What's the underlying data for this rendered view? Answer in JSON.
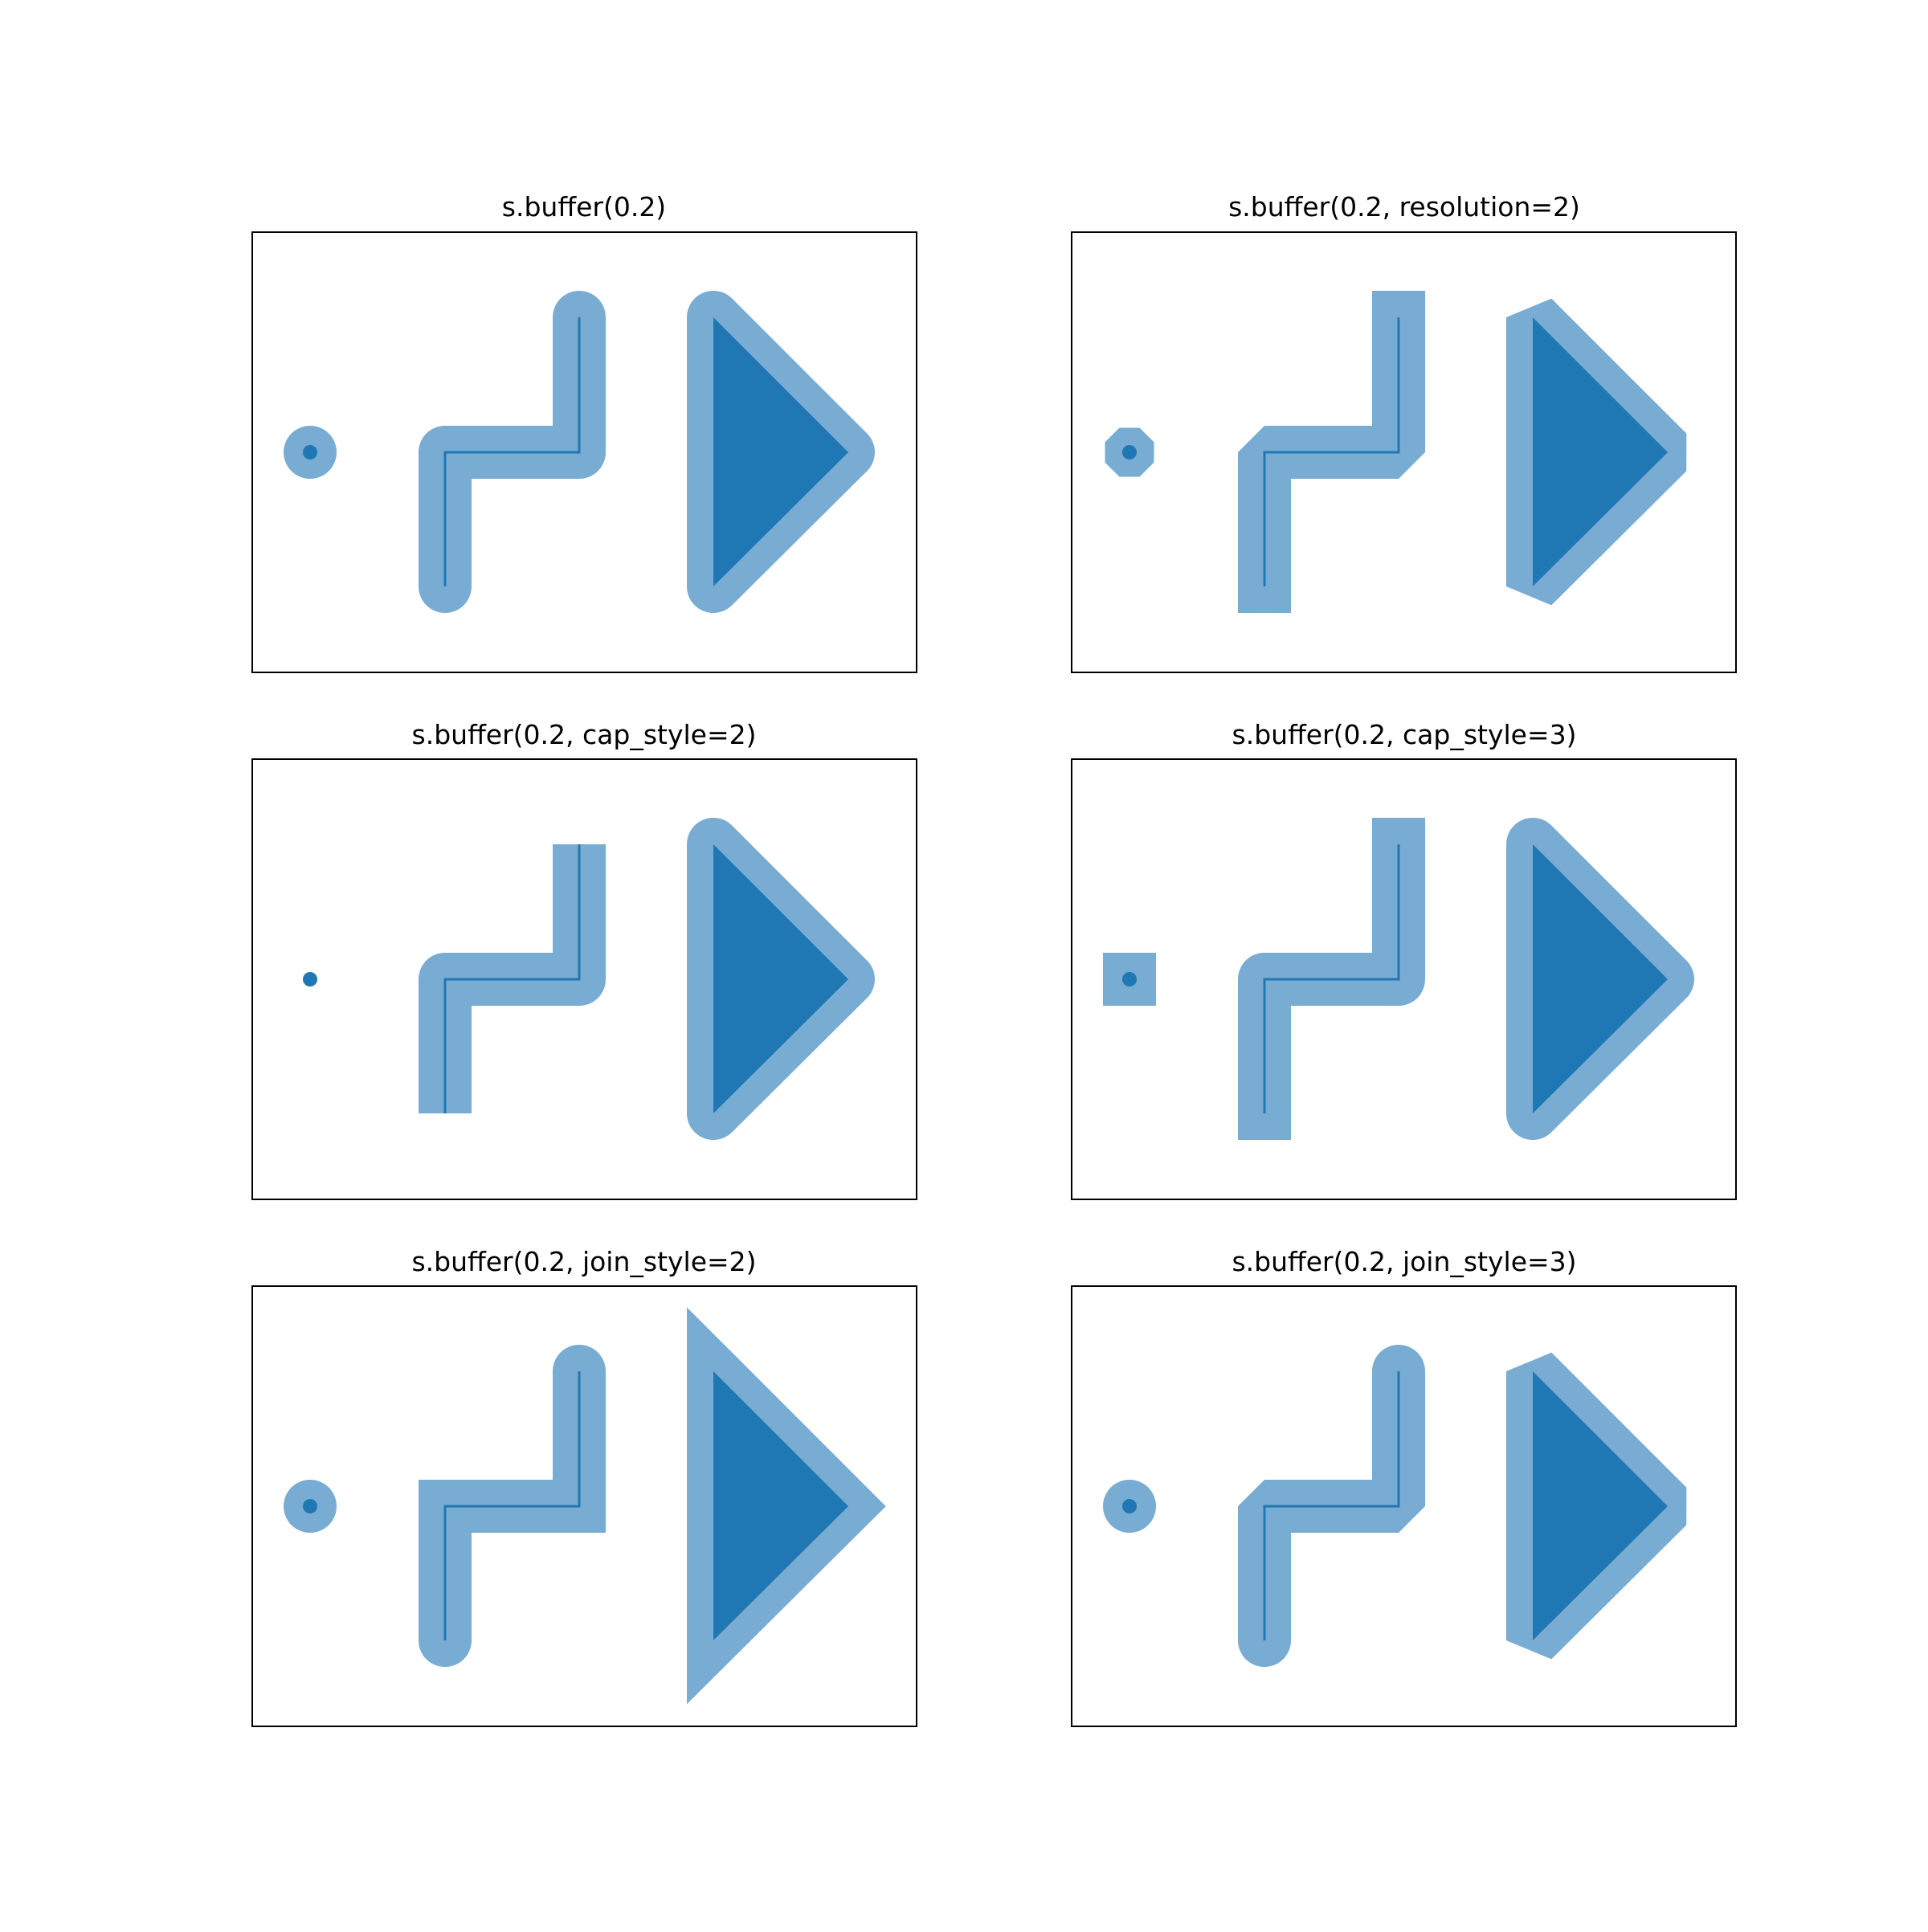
{
  "colors": {
    "geometry": "#1f77b4",
    "buffer": "#79acd2",
    "frame": "#000000",
    "background": "#ffffff"
  },
  "panels": [
    {
      "title": "s.buffer(0.2)",
      "cap_style": "round",
      "join_style": "round",
      "resolution": 16
    },
    {
      "title": "s.buffer(0.2, resolution=2)",
      "cap_style": "round",
      "join_style": "round",
      "resolution": 2
    },
    {
      "title": "s.buffer(0.2, cap_style=2)",
      "cap_style": "flat",
      "join_style": "round",
      "resolution": 16
    },
    {
      "title": "s.buffer(0.2, cap_style=3)",
      "cap_style": "square",
      "join_style": "round",
      "resolution": 16
    },
    {
      "title": "s.buffer(0.2, join_style=2)",
      "cap_style": "round",
      "join_style": "mitre",
      "resolution": 16
    },
    {
      "title": "s.buffer(0.2, join_style=3)",
      "cap_style": "round",
      "join_style": "bevel",
      "resolution": 16
    }
  ]
}
